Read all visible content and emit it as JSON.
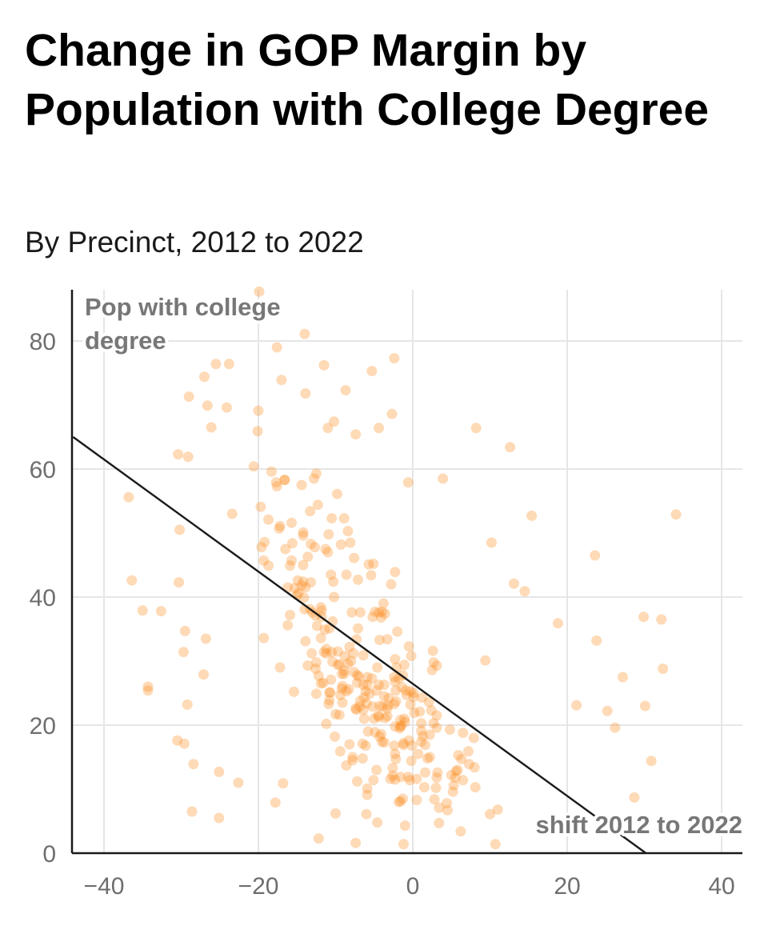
{
  "header": {
    "title": "Change in GOP Margin by Population with College Degree",
    "subtitle": "By Precinct, 2012 to 2022"
  },
  "colors": {
    "point": "#fd8d1f",
    "line": "#1a1a1a",
    "grid": "#e6e6e6",
    "axis": "#1a1a1a"
  },
  "chart_data": {
    "type": "scatter",
    "title": "Change in GOP Margin by Population with College Degree",
    "subtitle": "By Precinct, 2012 to 2022",
    "xlabel": "shift 2012 to 2022",
    "ylabel_lines": [
      "Pop with college",
      "degree"
    ],
    "xlim": [
      -44,
      43
    ],
    "ylim": [
      0,
      88
    ],
    "xticks": [
      -40,
      -20,
      0,
      20,
      40
    ],
    "xtick_labels": [
      "−40",
      "−20",
      "0",
      "20",
      "40"
    ],
    "yticks": [
      0,
      20,
      40,
      60,
      80
    ],
    "ytick_labels": [
      "0",
      "20",
      "40",
      "60",
      "80"
    ],
    "grid": true,
    "trend_line": {
      "x": [
        -44,
        30.2
      ],
      "y": [
        65,
        0
      ]
    },
    "points": [
      [
        -19.9,
        87.7
      ],
      [
        -14.0,
        81.1
      ],
      [
        -17.6,
        79.0
      ],
      [
        -2.4,
        77.3
      ],
      [
        -25.5,
        76.4
      ],
      [
        -23.8,
        76.4
      ],
      [
        -11.5,
        76.2
      ],
      [
        -5.3,
        75.3
      ],
      [
        -27.0,
        74.4
      ],
      [
        -17.0,
        73.9
      ],
      [
        -8.7,
        72.3
      ],
      [
        -29.0,
        71.3
      ],
      [
        -13.9,
        71.8
      ],
      [
        -26.6,
        69.9
      ],
      [
        -24.1,
        69.6
      ],
      [
        -20.0,
        69.1
      ],
      [
        -2.7,
        68.6
      ],
      [
        -10.2,
        67.4
      ],
      [
        -26.1,
        66.5
      ],
      [
        -4.4,
        66.4
      ],
      [
        8.2,
        66.4
      ],
      [
        -7.4,
        65.4
      ],
      [
        12.6,
        63.4
      ],
      [
        -30.4,
        62.3
      ],
      [
        -29.1,
        61.9
      ],
      [
        -0.6,
        57.9
      ],
      [
        3.9,
        58.5
      ],
      [
        -36.8,
        55.6
      ],
      [
        15.4,
        52.7
      ],
      [
        34.1,
        52.9
      ],
      [
        10.2,
        48.5
      ],
      [
        -30.2,
        50.5
      ],
      [
        23.6,
        46.5
      ],
      [
        -36.4,
        42.6
      ],
      [
        -30.3,
        42.3
      ],
      [
        -35.0,
        37.9
      ],
      [
        -32.6,
        37.8
      ],
      [
        14.5,
        40.9
      ],
      [
        13.1,
        42.1
      ],
      [
        29.9,
        36.9
      ],
      [
        32.2,
        36.5
      ],
      [
        18.8,
        35.9
      ],
      [
        -29.5,
        34.7
      ],
      [
        -29.7,
        31.4
      ],
      [
        23.8,
        33.2
      ],
      [
        -34.3,
        26.0
      ],
      [
        -34.3,
        25.4
      ],
      [
        -29.2,
        23.2
      ],
      [
        -30.5,
        17.6
      ],
      [
        -29.6,
        17.1
      ],
      [
        32.4,
        28.8
      ],
      [
        27.2,
        27.5
      ],
      [
        30.1,
        23.0
      ],
      [
        -28.4,
        13.9
      ],
      [
        -25.1,
        12.7
      ],
      [
        -28.6,
        6.5
      ],
      [
        -25.1,
        5.5
      ],
      [
        9.4,
        30.1
      ],
      [
        3.4,
        7.1
      ],
      [
        28.7,
        8.7
      ],
      [
        30.9,
        14.4
      ],
      [
        26.2,
        19.6
      ],
      [
        21.2,
        23.1
      ],
      [
        25.2,
        22.2
      ],
      [
        -1.2,
        1.4
      ],
      [
        10.7,
        1.4
      ],
      [
        -7.4,
        1.6
      ],
      [
        -12.2,
        2.3
      ],
      [
        -4.6,
        4.8
      ],
      [
        -6.0,
        6.1
      ],
      [
        3.4,
        4.7
      ],
      [
        6.2,
        3.4
      ],
      [
        -16.8,
        10.9
      ],
      [
        -17.8,
        7.9
      ],
      [
        -22.6,
        11.0
      ],
      [
        -26.8,
        33.5
      ],
      [
        -27.1,
        27.9
      ],
      [
        -11.0,
        66.4
      ],
      [
        -20.1,
        65.9
      ],
      [
        -3.6,
        37.4
      ],
      [
        -15.4,
        25.2
      ],
      [
        -0.4,
        11.4
      ],
      [
        -23.4,
        53.0
      ],
      [
        -10.1,
        18.2
      ],
      [
        5.8,
        13.0
      ],
      [
        -17.3,
        50.7
      ],
      [
        -5.9,
        9.1
      ],
      [
        -4.4,
        26.3
      ],
      [
        -10.6,
        43.5
      ],
      [
        -4.0,
        37.7
      ],
      [
        1.5,
        10.3
      ],
      [
        -10.0,
        6.2
      ],
      [
        -19.3,
        33.6
      ],
      [
        6.5,
        18.8
      ],
      [
        -12.3,
        54.4
      ],
      [
        -1.0,
        4.3
      ],
      [
        -18.7,
        44.9
      ],
      [
        1.9,
        14.8
      ],
      [
        -18.7,
        52.1
      ],
      [
        11.0,
        6.8
      ],
      [
        5.2,
        9.6
      ],
      [
        3.1,
        29.3
      ],
      [
        10.0,
        6.1
      ],
      [
        -0.3,
        23.2
      ],
      [
        -4.1,
        18.6
      ],
      [
        -5.1,
        11.4
      ],
      [
        -12.2,
        27.7
      ],
      [
        -9.5,
        21.6
      ],
      [
        -7.4,
        22.6
      ],
      [
        1.2,
        24.3
      ],
      [
        -11.6,
        26.6
      ],
      [
        0.1,
        24.4
      ],
      [
        -2.0,
        34.6
      ],
      [
        -3.2,
        23.1
      ],
      [
        -9.2,
        25.7
      ],
      [
        3.0,
        10.2
      ],
      [
        -16.6,
        58.3
      ],
      [
        -7.9,
        37.6
      ],
      [
        -9.8,
        56.1
      ],
      [
        2.7,
        29.8
      ],
      [
        1.6,
        16.9
      ],
      [
        7.2,
        15.9
      ],
      [
        1.1,
        17.4
      ],
      [
        -8.4,
        50.3
      ],
      [
        -0.5,
        32.3
      ],
      [
        -6.3,
        21.0
      ],
      [
        -2.6,
        12.1
      ],
      [
        -7.8,
        14.5
      ],
      [
        -8.9,
        52.3
      ],
      [
        3.1,
        11.8
      ],
      [
        5.0,
        12.2
      ],
      [
        -10.5,
        52.3
      ],
      [
        -13.9,
        41.5
      ],
      [
        -5.8,
        19.0
      ],
      [
        -3.6,
        21.1
      ],
      [
        -8.8,
        30.8
      ],
      [
        -19.6,
        47.8
      ],
      [
        -11.2,
        31.2
      ],
      [
        -2.3,
        11.5
      ],
      [
        -12.6,
        28.8
      ],
      [
        -4.3,
        18.2
      ],
      [
        -10.9,
        49.8
      ],
      [
        2.6,
        31.6
      ],
      [
        -10.7,
        25.1
      ],
      [
        4.4,
        7.8
      ],
      [
        -17.2,
        51.1
      ],
      [
        5.3,
        10.6
      ],
      [
        -3.7,
        24.5
      ],
      [
        -4.9,
        18.9
      ],
      [
        2.8,
        8.4
      ],
      [
        5.5,
        11.8
      ],
      [
        -5.1,
        45.2
      ],
      [
        -7.3,
        33.4
      ],
      [
        -9.1,
        26.1
      ],
      [
        -9.5,
        29.5
      ],
      [
        -3.8,
        39.0
      ],
      [
        -15.6,
        48.4
      ],
      [
        2.5,
        28.6
      ],
      [
        -2.8,
        42.0
      ],
      [
        8.1,
        10.3
      ],
      [
        -9.7,
        31.5
      ],
      [
        -4.9,
        37.7
      ],
      [
        -2.4,
        27.5
      ],
      [
        -7.7,
        31.2
      ],
      [
        -12.8,
        58.5
      ],
      [
        -14.2,
        50.1
      ],
      [
        -0.1,
        16.8
      ],
      [
        6.5,
        11.4
      ],
      [
        -2.3,
        43.9
      ],
      [
        0.5,
        8.3
      ],
      [
        -9.3,
        48.2
      ],
      [
        -6.3,
        24.3
      ],
      [
        -14.0,
        38.1
      ],
      [
        -13.3,
        53.4
      ],
      [
        0.2,
        21.9
      ],
      [
        -9.4,
        15.9
      ],
      [
        -13.2,
        42.3
      ],
      [
        -10.8,
        25.1
      ],
      [
        -0.8,
        24.7
      ],
      [
        -8.2,
        17.0
      ],
      [
        -5.7,
        45.1
      ],
      [
        -0.5,
        17.6
      ],
      [
        -8.6,
        25.3
      ],
      [
        -1.5,
        19.9
      ],
      [
        -2.3,
        15.5
      ],
      [
        -14.4,
        41.8
      ],
      [
        7.9,
        18.0
      ],
      [
        -2.2,
        23.7
      ],
      [
        5.6,
        12.8
      ],
      [
        1.1,
        19.1
      ],
      [
        -12.5,
        59.3
      ],
      [
        3.1,
        21.5
      ],
      [
        -13.6,
        29.3
      ],
      [
        -14.1,
        39.9
      ],
      [
        -12.5,
        24.9
      ],
      [
        -0.6,
        11.9
      ],
      [
        -8.6,
        43.5
      ],
      [
        -1.4,
        25.9
      ],
      [
        1.1,
        20.3
      ],
      [
        -16.5,
        47.5
      ],
      [
        -5.4,
        43.4
      ],
      [
        -6.4,
        30.9
      ],
      [
        -11.2,
        31.9
      ],
      [
        -13.6,
        46.3
      ],
      [
        4.5,
        6.7
      ],
      [
        -1.8,
        8.0
      ],
      [
        -19.3,
        45.7
      ],
      [
        -12.7,
        47.8
      ],
      [
        -1.2,
        16.9
      ],
      [
        -18.3,
        59.6
      ],
      [
        -7.8,
        15.0
      ],
      [
        -0.2,
        30.8
      ],
      [
        5.9,
        15.3
      ],
      [
        -5.0,
        21.0
      ],
      [
        -15.7,
        51.6
      ],
      [
        -7.3,
        22.4
      ],
      [
        -1.6,
        11.9
      ],
      [
        -6.5,
        14.8
      ],
      [
        -6.8,
        37.6
      ],
      [
        -10.4,
        29.9
      ],
      [
        -10.8,
        35.1
      ],
      [
        -2.3,
        30.3
      ],
      [
        -13.2,
        48.3
      ],
      [
        6.3,
        14.7
      ],
      [
        -16.2,
        41.5
      ],
      [
        -7.0,
        27.6
      ],
      [
        -6.5,
        17.1
      ],
      [
        -1.8,
        27.3
      ],
      [
        -17.7,
        57.9
      ],
      [
        8.0,
        13.4
      ],
      [
        -2.1,
        29.0
      ],
      [
        -6.4,
        26.3
      ],
      [
        -16.2,
        35.6
      ],
      [
        -19.7,
        54.1
      ],
      [
        -13.9,
        33.1
      ],
      [
        0.1,
        25.0
      ],
      [
        0.7,
        15.5
      ],
      [
        -11.9,
        26.5
      ],
      [
        -5.9,
        10.1
      ],
      [
        -11.9,
        33.6
      ],
      [
        -8.1,
        48.5
      ],
      [
        -20.6,
        60.4
      ],
      [
        -10.9,
        23.3
      ],
      [
        0.5,
        11.6
      ],
      [
        -15.3,
        41.4
      ],
      [
        -4.4,
        37.6
      ],
      [
        -11.5,
        31.4
      ],
      [
        -6.4,
        22.4
      ],
      [
        -1.3,
        8.5
      ],
      [
        -6.1,
        16.8
      ],
      [
        -1.6,
        8.1
      ],
      [
        -17.2,
        29.0
      ],
      [
        -4.7,
        25.4
      ],
      [
        -4.4,
        21.3
      ],
      [
        -10.8,
        23.9
      ],
      [
        -2.4,
        16.8
      ],
      [
        -11.8,
        37.9
      ],
      [
        -3.3,
        33.4
      ],
      [
        -16.6,
        58.3
      ],
      [
        -10.3,
        42.4
      ],
      [
        7.3,
        13.9
      ],
      [
        2.1,
        23.6
      ],
      [
        -7.2,
        26.6
      ],
      [
        -14.8,
        40.6
      ],
      [
        -11.0,
        47.0
      ],
      [
        -3.3,
        21.4
      ],
      [
        -1.6,
        20.8
      ],
      [
        -2.3,
        26.8
      ],
      [
        -10.2,
        40.0
      ],
      [
        2.7,
        20.3
      ],
      [
        -15.7,
        45.7
      ],
      [
        -13.1,
        31.2
      ],
      [
        4.8,
        19.3
      ],
      [
        -1.6,
        19.8
      ],
      [
        -3.3,
        22.6
      ],
      [
        -9.7,
        29.4
      ],
      [
        -7.6,
        46.1
      ],
      [
        1.6,
        12.6
      ],
      [
        -11.4,
        34.9
      ],
      [
        -2.3,
        19.8
      ],
      [
        -11.2,
        20.2
      ],
      [
        -9.4,
        24.7
      ],
      [
        -8.3,
        25.6
      ],
      [
        -17.6,
        57.3
      ],
      [
        2.4,
        22.3
      ],
      [
        3.2,
        12.6
      ],
      [
        -1.2,
        17.2
      ],
      [
        -15.0,
        40.3
      ],
      [
        -8.9,
        28.0
      ],
      [
        -14.4,
        57.5
      ],
      [
        -5.2,
        36.9
      ],
      [
        -14.2,
        42.4
      ],
      [
        -7.1,
        42.7
      ],
      [
        -13.3,
        38.1
      ],
      [
        -12.5,
        29.8
      ],
      [
        -4.3,
        33.3
      ],
      [
        -11.8,
        36.9
      ],
      [
        -5.9,
        26.3
      ],
      [
        -14.2,
        45.0
      ],
      [
        -4.7,
        13.0
      ],
      [
        -2.9,
        11.6
      ],
      [
        -2.6,
        13.3
      ],
      [
        -10.5,
        31.4
      ],
      [
        3.1,
        19.6
      ],
      [
        2.2,
        18.5
      ],
      [
        1.3,
        18.3
      ],
      [
        -15.9,
        37.2
      ],
      [
        -5.3,
        27.3
      ],
      [
        -8.2,
        32.2
      ],
      [
        -2.2,
        14.7
      ],
      [
        -19.2,
        48.6
      ],
      [
        -6.1,
        25.3
      ],
      [
        -0.9,
        25.4
      ],
      [
        -7.2,
        11.2
      ],
      [
        -4.6,
        29.0
      ],
      [
        2.2,
        15.0
      ],
      [
        -7.1,
        35.1
      ],
      [
        -8.6,
        13.7
      ],
      [
        -4.1,
        36.8
      ],
      [
        -15.9,
        44.9
      ],
      [
        -10.6,
        27.1
      ],
      [
        -11.3,
        47.5
      ],
      [
        -12.6,
        37.1
      ],
      [
        -1.7,
        19.5
      ],
      [
        -10.4,
        36.2
      ],
      [
        -6.0,
        23.4
      ],
      [
        -9.2,
        28.0
      ],
      [
        -6.9,
        22.9
      ],
      [
        -4.3,
        23.0
      ],
      [
        -14.2,
        49.6
      ],
      [
        -9.1,
        23.5
      ],
      [
        -1.1,
        29.4
      ],
      [
        -1.3,
        27.8
      ],
      [
        -2.2,
        25.4
      ],
      [
        -1.1,
        21.0
      ],
      [
        -3.7,
        17.3
      ],
      [
        -8.9,
        28.5
      ],
      [
        -7.2,
        27.8
      ],
      [
        -14.9,
        42.6
      ],
      [
        -5.6,
        24.9
      ],
      [
        -10.0,
        21.7
      ],
      [
        -0.3,
        25.3
      ],
      [
        -8.0,
        30.0
      ],
      [
        -4.0,
        17.4
      ],
      [
        -0.2,
        14.4
      ],
      [
        0.9,
        22.1
      ],
      [
        -1.0,
        20.5
      ],
      [
        -5.9,
        27.5
      ],
      [
        -3.1,
        24.2
      ],
      [
        -2.4,
        23.3
      ],
      [
        -3.9,
        22.9
      ],
      [
        -4.5,
        21.5
      ],
      [
        -12.4,
        35.5
      ],
      [
        -11.9,
        38.4
      ],
      [
        -13.0,
        37.6
      ],
      [
        -8.4,
        29.6
      ],
      [
        -6.8,
        23.8
      ],
      [
        -3.7,
        26.3
      ],
      [
        -7.6,
        28.3
      ],
      [
        -5.2,
        22.9
      ]
    ]
  }
}
